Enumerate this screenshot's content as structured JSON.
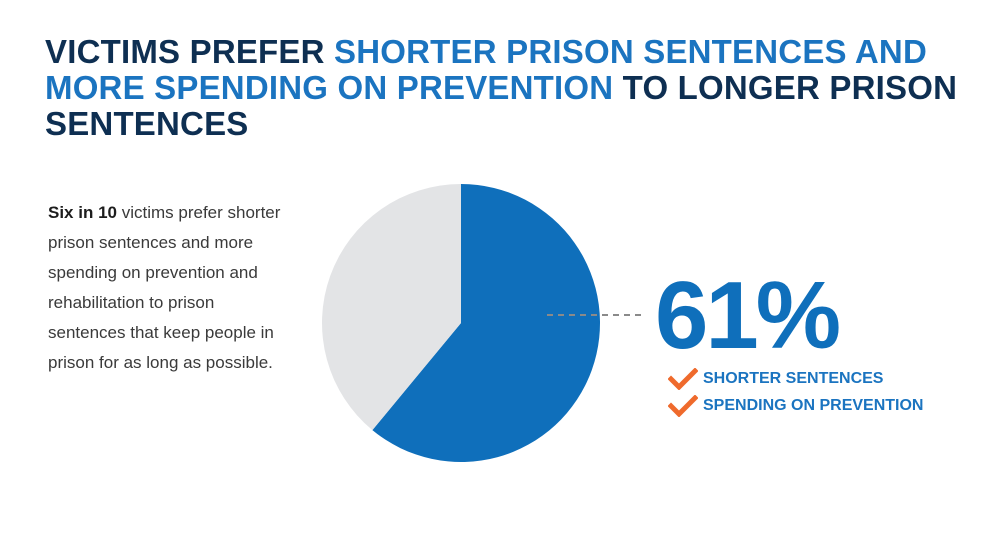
{
  "title": {
    "part1": "VICTIMS PREFER ",
    "part2": "SHORTER PRISON SENTENCES AND MORE SPENDING ON PREVENTION",
    "part3": " TO LONGER PRISON SENTENCES"
  },
  "body": {
    "lead": "Six in 10",
    "text": " victims prefer shorter prison sentences and more spending on prevention and rehabilitation to prison sentences that keep people in prison for as long as possible."
  },
  "colors": {
    "primary": "#0f6fbb",
    "remainder": "#e3e4e6",
    "title_dark": "#0e2f52",
    "title_highlight": "#1b74c0",
    "check": "#ef6a2c",
    "leader": "#8a8a8a"
  },
  "chart_data": {
    "type": "pie",
    "slices": [
      {
        "value": 61,
        "color": "#0f6fbb"
      },
      {
        "value": 39,
        "color": "#e3e4e6"
      }
    ],
    "annotation": {
      "value_label": "61%",
      "items": [
        "SHORTER SENTENCES",
        "SPENDING ON PREVENTION"
      ],
      "icon": "check-icon"
    }
  }
}
